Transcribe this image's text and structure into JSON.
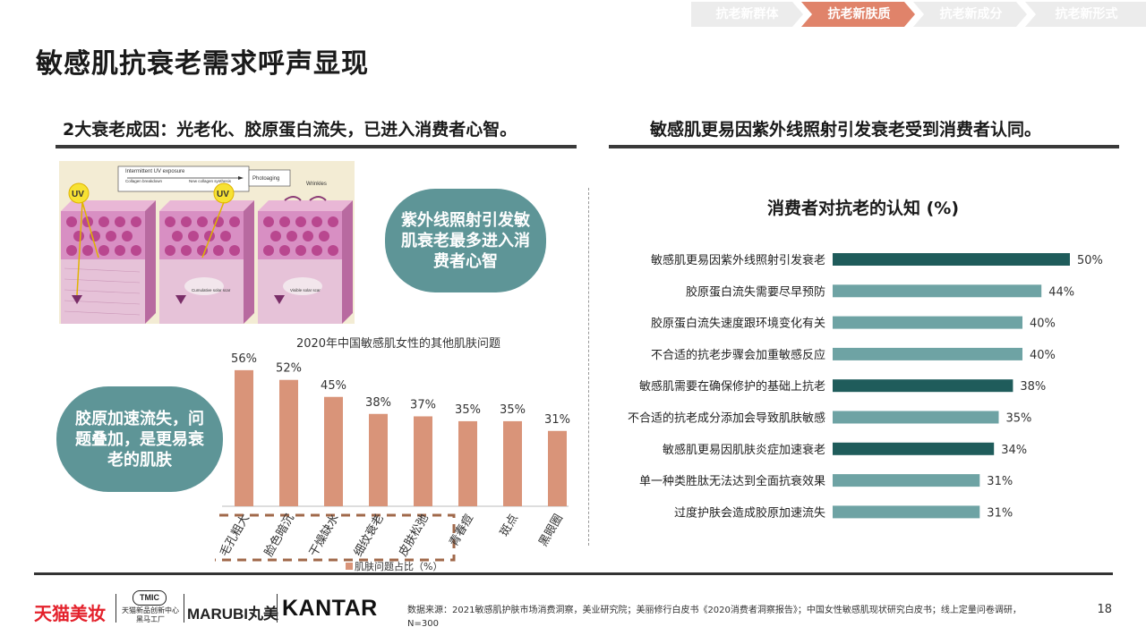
{
  "tabs": [
    {
      "label": "抗老新群体",
      "active": false
    },
    {
      "label": "抗老新肤质",
      "active": true
    },
    {
      "label": "抗老新成分",
      "active": false
    },
    {
      "label": "抗老新形式",
      "active": false
    }
  ],
  "title": "敏感肌抗衰老需求呼声显现",
  "left": {
    "subtitle": "2大衰老成因：光老化、胶原蛋白流失，已进入消费者心智。",
    "diagram": {
      "header_left": "Intermittent UV exposure",
      "header_left_a": "Collagen breakdown",
      "header_left_b": "New collagen synthesis",
      "header_mid": "Photoaging",
      "header_right": "Wrinkles",
      "uv": "UV",
      "kc": "KC",
      "fb": "Fb",
      "label_mid": "Cumulative solar scar",
      "label_right": "Visible solar scar"
    },
    "bubble_top": "紫外线照射引发敏肌衰老最多进入消费者心智",
    "bubble_bottom": "胶原加速流失，问题叠加，是更易衰老的肌肤"
  },
  "right": {
    "subtitle": "敏感肌更易因紫外线照射引发衰老受到消费者认同。"
  },
  "colors": {
    "tab_active": "#e0836a",
    "tab_inactive": "#ececec",
    "bar_salmon": "#d99479",
    "bar_dark": "#1f5c5b",
    "bar_light": "#6ea3a4",
    "bubble": "#5e9597",
    "dash_box": "#a0684a"
  },
  "chart_data": [
    {
      "type": "bar",
      "title": "2020年中国敏感肌女性的其他肌肤问题",
      "categories": [
        "毛孔粗大",
        "脸色暗沉",
        "干燥缺水",
        "细纹衰老",
        "皮肤松弛",
        "青春痘",
        "斑点",
        "黑眼圈"
      ],
      "values": [
        56,
        52,
        45,
        38,
        37,
        35,
        35,
        31
      ],
      "value_labels": [
        "56%",
        "52%",
        "45%",
        "38%",
        "37%",
        "35%",
        "35%",
        "31%"
      ],
      "legend": "肌肤问题占比（%）",
      "ylim": [
        0,
        60
      ],
      "highlighted": [
        "毛孔粗大",
        "脸色暗沉",
        "干燥缺水",
        "细纹衰老",
        "皮肤松弛"
      ]
    },
    {
      "type": "bar",
      "orientation": "horizontal",
      "title": "消费者对抗老的认知 (%)",
      "categories": [
        "敏感肌更易因紫外线照射引发衰老",
        "胶原蛋白流失需要尽早预防",
        "胶原蛋白流失速度跟环境变化有关",
        "不合适的抗老步骤会加重敏感反应",
        "敏感肌需要在确保修护的基础上抗老",
        "不合适的抗老成分添加会导致肌肤敏感",
        "敏感肌更易因肌肤炎症加速衰老",
        "单一种类胜肽无法达到全面抗衰效果",
        "过度护肤会造成胶原加速流失"
      ],
      "values": [
        50,
        44,
        40,
        40,
        38,
        35,
        34,
        31,
        31
      ],
      "value_labels": [
        "50%",
        "44%",
        "40%",
        "40%",
        "38%",
        "35%",
        "34%",
        "31%",
        "31%"
      ],
      "highlighted": [
        "敏感肌更易因紫外线照射引发衰老",
        "敏感肌需要在确保修护的基础上抗老",
        "敏感肌更易因肌肤炎症加速衰老"
      ],
      "xlim": [
        0,
        50
      ]
    }
  ],
  "footer": {
    "logo_tmall": "天猫美妆",
    "logo_tmic": "TMIC",
    "logo_tmic_sub": "天猫新品创新中心",
    "logo_tmic_sub2": "黑马工厂",
    "logo_marubi": "MARUBI丸美",
    "logo_kantar": "KANTAR",
    "source": "数据来源：2021敏感肌护肤市场消费洞察，美业研究院；美丽修行白皮书《2020消费者洞察报告》；中国女性敏感肌现状研究白皮书；线上定量问卷调研，N=300",
    "page": "18"
  }
}
